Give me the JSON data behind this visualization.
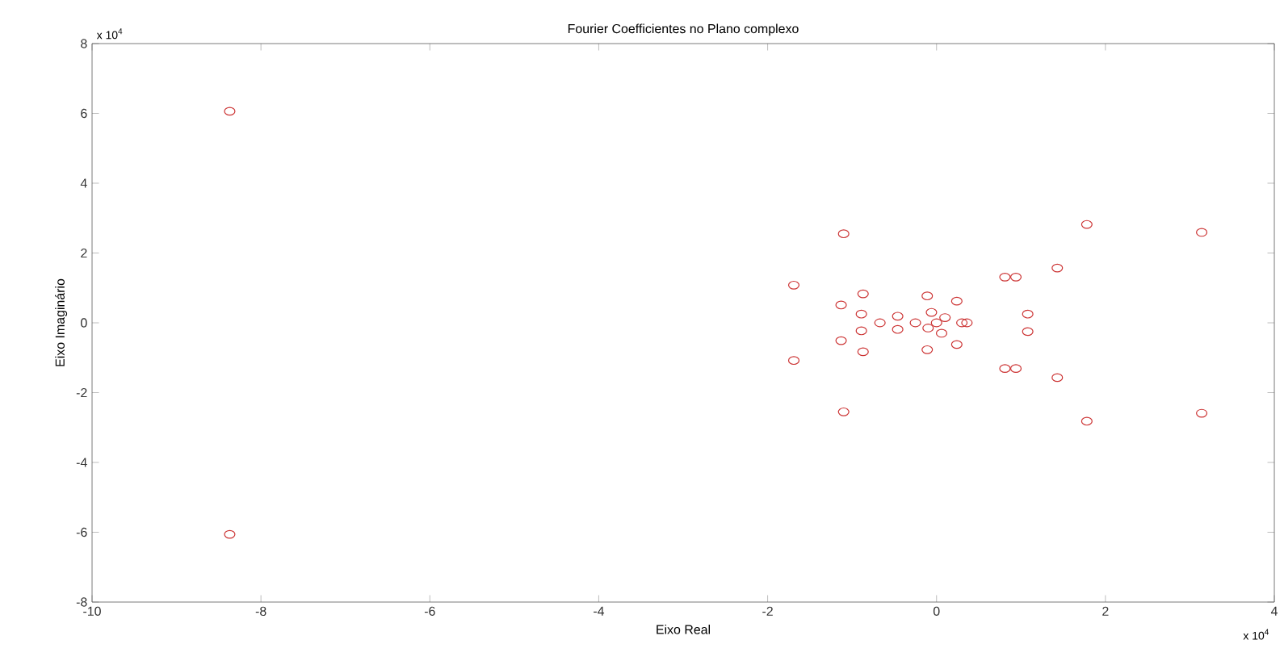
{
  "chart_data": {
    "type": "scatter",
    "title": "Fourier Coefficientes no Plano complexo",
    "xlabel": "Eixo Real",
    "ylabel": "Eixo Imaginário",
    "annotations": [
      "x 10$^{4}$",
      "x 10$^{4}$"
    ],
    "series": [
      {
        "color": "#cc3333",
        "marker": "circle",
        "x": [
          -8.37,
          -8.37,
          -1.1,
          -1.69,
          -1.69,
          -1.1,
          -1.13,
          -1.13,
          -0.87,
          -0.87,
          -0.89,
          -0.89,
          -0.67,
          -0.46,
          -0.46,
          -0.11,
          -0.11,
          0.24,
          0.24,
          0,
          -0.25,
          0.3,
          0.36,
          -0.06,
          0.06,
          0.1,
          -0.1,
          0.81,
          0.94,
          0.81,
          0.94,
          1.08,
          1.08,
          1.43,
          1.43,
          1.78,
          1.78,
          3.14,
          3.14
        ],
        "values": [
          6.06,
          -6.06,
          2.55,
          1.08,
          -1.08,
          -2.55,
          0.51,
          -0.51,
          0.83,
          -0.83,
          0.25,
          -0.23,
          0,
          0.19,
          -0.19,
          0.77,
          -0.77,
          0.62,
          -0.62,
          0,
          0,
          0,
          0,
          0.3,
          -0.3,
          0.15,
          -0.15,
          1.31,
          1.31,
          -1.31,
          -1.31,
          0.25,
          -0.25,
          1.57,
          -1.57,
          2.82,
          -2.82,
          2.59,
          -2.59
        ]
      }
    ],
    "xlim": [
      -10,
      4
    ],
    "ylim": [
      -8,
      8
    ],
    "xticks": [
      -10,
      -8,
      -6,
      -4,
      -2,
      0,
      2,
      4
    ],
    "yticks": [
      -8,
      -6,
      -4,
      -2,
      0,
      2,
      4,
      6,
      8
    ],
    "grid": false
  }
}
